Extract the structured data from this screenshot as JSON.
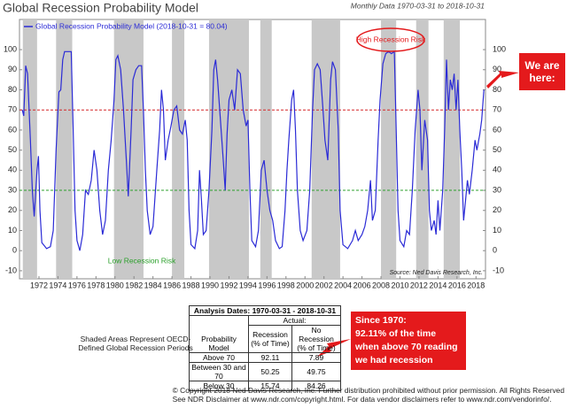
{
  "chart_data": {
    "type": "line",
    "title": "Global Recession Probability Model",
    "subtitle": "Monthly Data 1970-03-31 to 2018-10-31",
    "series": [
      {
        "name": "Global Recession Probability Model (2018-10-31 = 80.04)",
        "color": "#2b2bd6",
        "x": [
          1970.25,
          1970.4,
          1970.6,
          1970.8,
          1971.1,
          1971.3,
          1971.5,
          1971.8,
          1971.95,
          1972.1,
          1972.3,
          1972.8,
          1973.2,
          1973.5,
          1973.8,
          1974.1,
          1974.3,
          1974.5,
          1974.7,
          1975.0,
          1975.4,
          1975.6,
          1975.8,
          1976.0,
          1976.3,
          1976.6,
          1976.9,
          1977.2,
          1977.5,
          1977.8,
          1978.1,
          1978.4,
          1978.7,
          1979.0,
          1979.3,
          1979.6,
          1979.9,
          1980.1,
          1980.3,
          1980.6,
          1980.9,
          1981.2,
          1981.4,
          1981.7,
          1981.9,
          1982.2,
          1982.5,
          1982.8,
          1983.0,
          1983.2,
          1983.4,
          1983.7,
          1984.0,
          1984.4,
          1984.7,
          1984.9,
          1985.1,
          1985.3,
          1985.6,
          1985.9,
          1986.2,
          1986.5,
          1986.8,
          1987.1,
          1987.4,
          1987.6,
          1987.8,
          1988.0,
          1988.4,
          1988.7,
          1988.9,
          1989.1,
          1989.3,
          1989.6,
          1989.9,
          1990.2,
          1990.4,
          1990.6,
          1990.8,
          1991.1,
          1991.4,
          1991.6,
          1991.8,
          1992.0,
          1992.3,
          1992.6,
          1992.9,
          1993.2,
          1993.5,
          1993.8,
          1994.0,
          1994.2,
          1994.4,
          1994.8,
          1995.1,
          1995.4,
          1995.7,
          1996.0,
          1996.3,
          1996.6,
          1996.9,
          1997.3,
          1997.6,
          1997.9,
          1998.1,
          1998.3,
          1998.6,
          1998.8,
          1999.0,
          1999.2,
          1999.5,
          1999.8,
          2000.2,
          2000.5,
          2000.8,
          2001.0,
          2001.3,
          2001.6,
          2001.9,
          2002.1,
          2002.4,
          2002.7,
          2002.9,
          2003.2,
          2003.5,
          2003.7,
          2004.0,
          2004.5,
          2005.0,
          2005.3,
          2005.6,
          2006.0,
          2006.3,
          2006.6,
          2006.9,
          2007.1,
          2007.4,
          2007.7,
          2007.9,
          2008.2,
          2008.5,
          2008.8,
          2009.1,
          2009.4,
          2009.6,
          2009.8,
          2010.0,
          2010.4,
          2010.7,
          2011.0,
          2011.3,
          2011.6,
          2011.9,
          2012.1,
          2012.3,
          2012.6,
          2012.9,
          2013.1,
          2013.3,
          2013.6,
          2013.8,
          2014.0,
          2014.2,
          2014.5,
          2014.7,
          2014.9,
          2015.1,
          2015.3,
          2015.5,
          2015.7,
          2015.9,
          2016.1,
          2016.3,
          2016.5,
          2016.7,
          2016.9,
          2017.1,
          2017.3,
          2017.6,
          2017.9,
          2018.1,
          2018.4,
          2018.6,
          2018.83
        ],
        "values": [
          70,
          67,
          92,
          88,
          55,
          30,
          17,
          40,
          47,
          20,
          4,
          1,
          2,
          10,
          50,
          79,
          80,
          95,
          99,
          99,
          99,
          60,
          20,
          5,
          0,
          8,
          30,
          28,
          35,
          50,
          40,
          20,
          8,
          15,
          40,
          55,
          75,
          95,
          97,
          90,
          70,
          45,
          27,
          60,
          85,
          90,
          92,
          92,
          70,
          40,
          20,
          8,
          12,
          40,
          60,
          80,
          70,
          45,
          55,
          62,
          70,
          72,
          60,
          58,
          65,
          55,
          20,
          3,
          1,
          10,
          40,
          25,
          8,
          10,
          30,
          60,
          90,
          95,
          85,
          65,
          45,
          30,
          58,
          75,
          80,
          70,
          90,
          88,
          70,
          62,
          65,
          30,
          5,
          2,
          10,
          40,
          45,
          30,
          20,
          15,
          5,
          1,
          2,
          20,
          40,
          55,
          75,
          80,
          60,
          30,
          10,
          5,
          10,
          30,
          70,
          90,
          93,
          90,
          70,
          55,
          45,
          85,
          94,
          90,
          60,
          20,
          3,
          1,
          5,
          10,
          5,
          8,
          12,
          20,
          35,
          15,
          20,
          55,
          75,
          93,
          98,
          99,
          98,
          99,
          60,
          20,
          5,
          2,
          10,
          8,
          30,
          60,
          80,
          70,
          40,
          65,
          55,
          20,
          10,
          15,
          8,
          25,
          10,
          30,
          60,
          95,
          70,
          85,
          80,
          88,
          70,
          85,
          60,
          40,
          15,
          25,
          35,
          28,
          40,
          55,
          50,
          58,
          65,
          80.04
        ]
      }
    ],
    "shaded": [
      [
        1970.3,
        1971.8
      ],
      [
        1973.8,
        1975.5
      ],
      [
        1979.9,
        1983.0
      ],
      [
        1986.0,
        1987.3
      ],
      [
        1989.9,
        1994.1
      ],
      [
        1995.3,
        1996.5
      ],
      [
        2000.7,
        2003.7
      ],
      [
        2008.0,
        2009.6
      ],
      [
        2011.7,
        2013.0
      ],
      [
        2014.6,
        2016.3
      ]
    ],
    "shade_color": "#c8c8c8",
    "hlines": [
      {
        "value": 70,
        "color": "#d62728"
      },
      {
        "value": 30,
        "color": "#2ca02c"
      }
    ],
    "xlim": [
      1969.95,
      2019
    ],
    "xticks": [
      1972,
      1974,
      1976,
      1978,
      1980,
      1982,
      1984,
      1986,
      1988,
      1990,
      1992,
      1994,
      1996,
      1998,
      2000,
      2002,
      2004,
      2006,
      2008,
      2010,
      2012,
      2014,
      2016,
      2018
    ],
    "ylim": [
      -14,
      115
    ],
    "yticks": [
      -10,
      0,
      10,
      20,
      30,
      40,
      50,
      60,
      70,
      80,
      90,
      100
    ],
    "high_risk": "High Recession Risk",
    "low_risk": "Low Recession Risk",
    "source": "Source: Ned Davis Research, Inc.",
    "pointer": "We are here:"
  },
  "table": {
    "title": "Analysis Dates: 1970-03-31 - 2018-10-31",
    "group_header": "Actual:",
    "headers": [
      "Probability Model",
      "Recession (% of Time)",
      "No Recession (% of Time)"
    ],
    "rows": [
      [
        "Above 70",
        92.11,
        7.89
      ],
      [
        "Between 30 and 70",
        50.25,
        49.75
      ],
      [
        "Below 30",
        15.74,
        84.26
      ]
    ]
  },
  "shading_note": "Shaded Areas Represent OECD-Defined Global Recession Periods",
  "callout": [
    "Since 1970:",
    "92.11% of the time",
    "when above 70 reading",
    "we had recession"
  ],
  "footer": [
    "© Copyright 2018 Ned Davis Research, Inc. Further distribution prohibited without prior permission. All Rights Reserved",
    "See NDR Disclaimer at www.ndr.com/copyright.html. For data vendor disclaimers refer to www.ndr.com/vendorinfo/."
  ]
}
